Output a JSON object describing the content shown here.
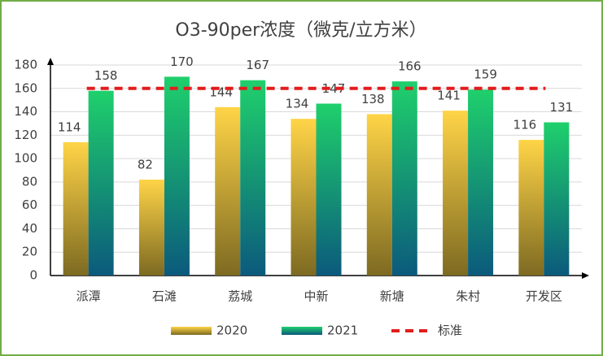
{
  "chart_data": {
    "type": "bar",
    "title": "O3-90per浓度（微克/立方米）",
    "categories": [
      "派潭",
      "石滩",
      "荔城",
      "中新",
      "新塘",
      "朱村",
      "开发区"
    ],
    "series": [
      {
        "name": "2020",
        "color": "#ffd447",
        "gradient_to": "#7d6a22",
        "values": [
          114,
          82,
          144,
          134,
          138,
          141,
          116
        ]
      },
      {
        "name": "2021",
        "color": "#1fd06c",
        "gradient_to": "#0b5a7c",
        "values": [
          158,
          170,
          167,
          147,
          166,
          159,
          131
        ]
      }
    ],
    "reference_line": {
      "name": "标准",
      "value": 160,
      "color": "#e31c1c"
    },
    "ylim": [
      0,
      180
    ],
    "yticks": [
      0,
      20,
      40,
      60,
      80,
      100,
      120,
      140,
      160,
      180
    ],
    "grid": true,
    "legend": "bottom"
  }
}
